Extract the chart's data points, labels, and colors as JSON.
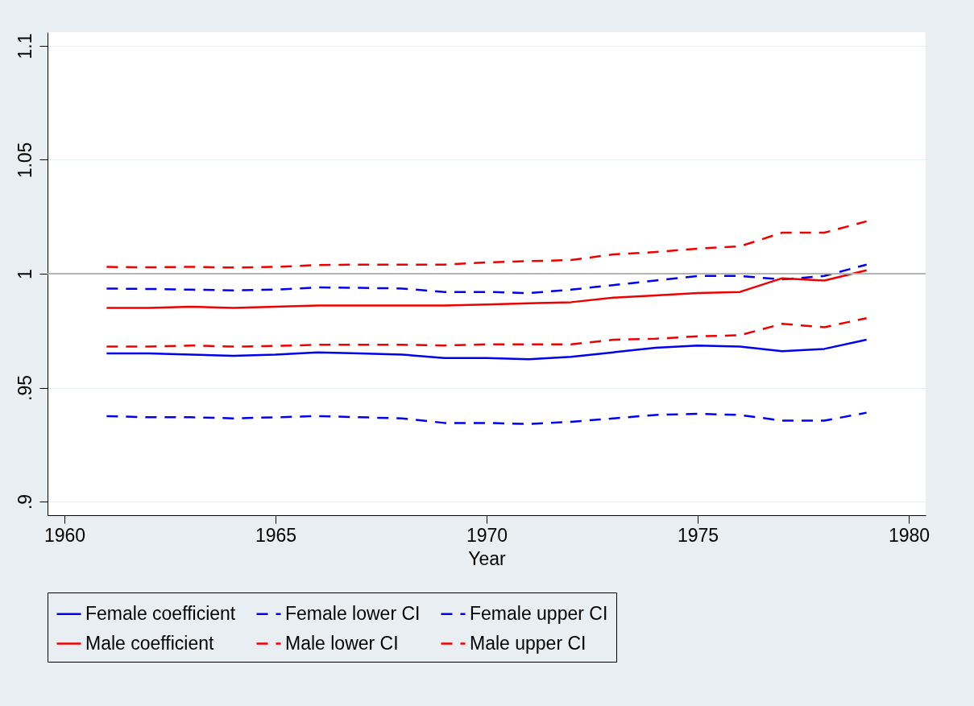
{
  "chart_data": {
    "type": "line",
    "xlabel": "Year",
    "xlim": [
      1959.6,
      1980.4
    ],
    "xticks": [
      1960,
      1965,
      1970,
      1975,
      1980
    ],
    "ylim": [
      0.894,
      1.106
    ],
    "yticks": [
      {
        "value": 0.9,
        "label": ".9"
      },
      {
        "value": 0.95,
        "label": ".95"
      },
      1,
      1.05,
      1.1
    ],
    "grid": "y",
    "legend": "bottom",
    "x": [
      1961,
      1962,
      1963,
      1964,
      1965,
      1966,
      1967,
      1968,
      1969,
      1970,
      1971,
      1972,
      1973,
      1974,
      1975,
      1976,
      1977,
      1978,
      1979
    ],
    "ref_lines": [
      {
        "axis": "y",
        "value": 1,
        "color": "#b4b4b4"
      }
    ],
    "series": [
      {
        "name": "Female coefficient",
        "color": "#0000ee",
        "line_style": "solid",
        "values": [
          0.965,
          0.965,
          0.9645,
          0.964,
          0.9645,
          0.9655,
          0.965,
          0.9645,
          0.963,
          0.963,
          0.9625,
          0.9635,
          0.9655,
          0.9675,
          0.9685,
          0.968,
          0.966,
          0.967,
          0.971
        ]
      },
      {
        "name": "Female lower CI",
        "color": "#0000ee",
        "line_style": "dashed",
        "values": [
          0.9375,
          0.937,
          0.937,
          0.9365,
          0.937,
          0.9375,
          0.937,
          0.9365,
          0.9345,
          0.9345,
          0.934,
          0.935,
          0.9365,
          0.938,
          0.9385,
          0.938,
          0.9355,
          0.9355,
          0.939
        ]
      },
      {
        "name": "Female upper CI",
        "color": "#0000ee",
        "line_style": "dashed",
        "values": [
          0.9935,
          0.9933,
          0.993,
          0.9927,
          0.993,
          0.994,
          0.9938,
          0.9935,
          0.992,
          0.992,
          0.9915,
          0.993,
          0.995,
          0.997,
          0.999,
          0.999,
          0.9975,
          0.999,
          1.004
        ]
      },
      {
        "name": "Male coefficient",
        "color": "#ee0000",
        "line_style": "solid",
        "values": [
          0.985,
          0.985,
          0.9855,
          0.985,
          0.9855,
          0.986,
          0.986,
          0.986,
          0.986,
          0.9865,
          0.987,
          0.9875,
          0.9895,
          0.9905,
          0.9915,
          0.992,
          0.998,
          0.997,
          1.0015
        ]
      },
      {
        "name": "Male lower CI",
        "color": "#ee0000",
        "line_style": "dashed",
        "values": [
          0.968,
          0.968,
          0.9685,
          0.968,
          0.9683,
          0.9688,
          0.9688,
          0.9688,
          0.9685,
          0.969,
          0.969,
          0.969,
          0.971,
          0.9715,
          0.9725,
          0.973,
          0.978,
          0.9765,
          0.9805
        ]
      },
      {
        "name": "Male upper CI",
        "color": "#ee0000",
        "line_style": "dashed",
        "values": [
          1.003,
          1.0028,
          1.003,
          1.0027,
          1.003,
          1.0038,
          1.004,
          1.004,
          1.004,
          1.005,
          1.0055,
          1.006,
          1.0085,
          1.0095,
          1.011,
          1.012,
          1.018,
          1.018,
          1.023
        ]
      }
    ]
  }
}
